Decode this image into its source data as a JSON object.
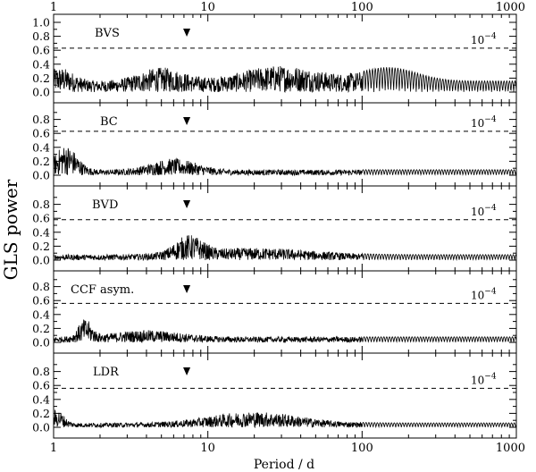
{
  "chart_data": {
    "type": "line",
    "x_axis": {
      "label": "Period / d",
      "scale": "log",
      "range": [
        1,
        1000
      ],
      "major_ticks": [
        1,
        10,
        100,
        1000
      ],
      "tick_labels": [
        "1",
        "10",
        "100",
        "1000"
      ]
    },
    "y_axis": {
      "label": "GLS power",
      "range": [
        0,
        1
      ],
      "tick_labels_top_panel": [
        "0.0",
        "0.2",
        "0.4",
        "0.6",
        "0.8",
        "1.0"
      ],
      "tick_labels_other_panels": [
        "0.0",
        "0.2",
        "0.4",
        "0.6",
        "0.8"
      ]
    },
    "marker_period": 7.3,
    "panels": [
      {
        "name": "BVS",
        "fap_label": "10",
        "fap_exp": "−4",
        "fap_level": 0.63
      },
      {
        "name": "BC",
        "fap_label": "10",
        "fap_exp": "−4",
        "fap_level": 0.63
      },
      {
        "name": "BVD",
        "fap_label": "10",
        "fap_exp": "−4",
        "fap_level": 0.58
      },
      {
        "name": "CCF asym.",
        "fap_label": "10",
        "fap_exp": "−4",
        "fap_level": 0.56
      },
      {
        "name": "LDR",
        "fap_label": "10",
        "fap_exp": "−4",
        "fap_level": 0.56
      }
    ],
    "grid": false,
    "legend": "none"
  }
}
